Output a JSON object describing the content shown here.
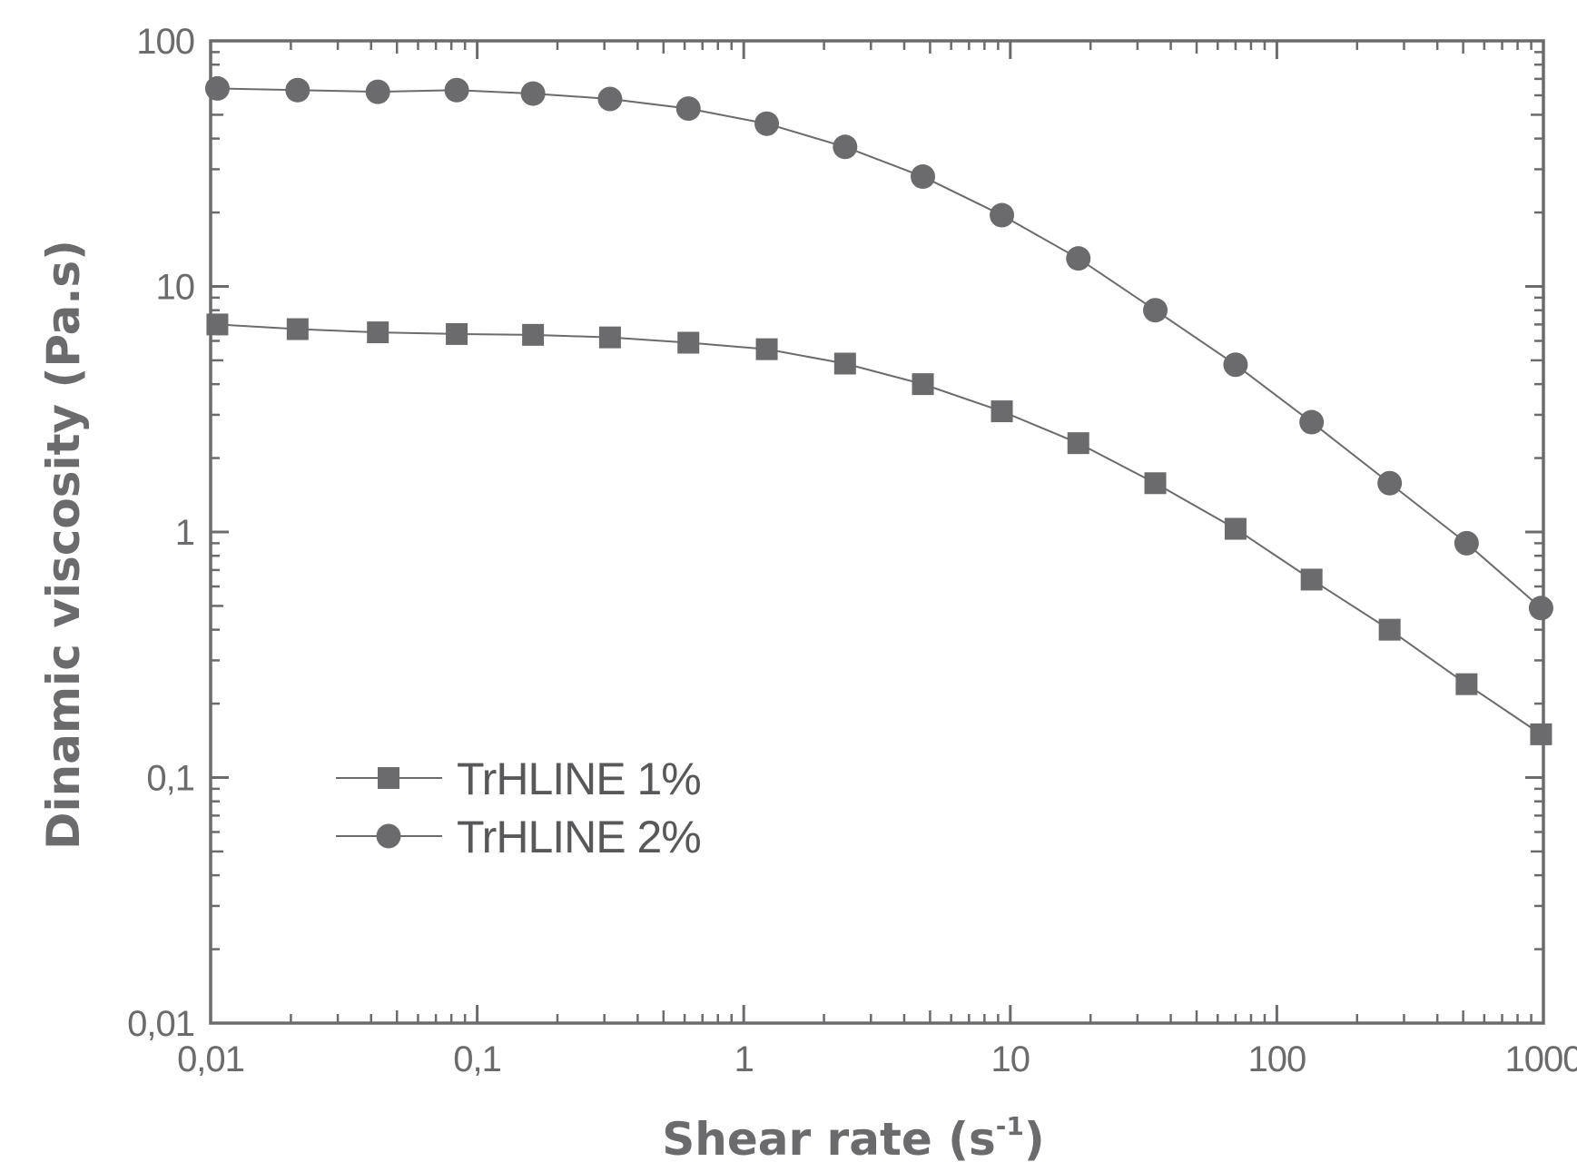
{
  "chart_data": {
    "type": "line",
    "xscale": "log",
    "yscale": "log",
    "xlim": [
      0.01,
      1000
    ],
    "ylim": [
      0.01,
      100
    ],
    "xlabel": "Shear rate (s",
    "xlabel_sup": "-1",
    "xlabel_close": ")",
    "ylabel": "Dinamic viscosity (Pa.s)",
    "xticks": [
      {
        "value": 0.01,
        "label": "0,01"
      },
      {
        "value": 0.1,
        "label": "0,1"
      },
      {
        "value": 1,
        "label": "1"
      },
      {
        "value": 10,
        "label": "10"
      },
      {
        "value": 100,
        "label": "100"
      },
      {
        "value": 1000,
        "label": "1000"
      }
    ],
    "yticks": [
      {
        "value": 0.01,
        "label": "0,01"
      },
      {
        "value": 0.1,
        "label": "0,1"
      },
      {
        "value": 1,
        "label": "1"
      },
      {
        "value": 10,
        "label": "10"
      },
      {
        "value": 100,
        "label": "100"
      }
    ],
    "grid": false,
    "legend_position": "lower-left",
    "series": [
      {
        "name": "TrHLINE 1%",
        "marker": "square",
        "color": "#6b6b6d",
        "x": [
          0.0106,
          0.0212,
          0.0424,
          0.0838,
          0.162,
          0.315,
          0.62,
          1.22,
          2.4,
          4.7,
          9.3,
          18,
          35,
          70,
          135,
          265,
          515,
          980
        ],
        "y": [
          7.0,
          6.7,
          6.5,
          6.4,
          6.35,
          6.2,
          5.9,
          5.55,
          4.85,
          4.0,
          3.1,
          2.3,
          1.58,
          1.03,
          0.64,
          0.4,
          0.24,
          0.15
        ]
      },
      {
        "name": "TrHLINE 2%",
        "marker": "circle",
        "color": "#6b6b6d",
        "x": [
          0.0106,
          0.0212,
          0.0424,
          0.0838,
          0.162,
          0.315,
          0.62,
          1.22,
          2.4,
          4.7,
          9.3,
          18,
          35,
          70,
          135,
          265,
          515,
          980
        ],
        "y": [
          64,
          63,
          62,
          63,
          61,
          58,
          53,
          46,
          37,
          28,
          19.5,
          13,
          8.0,
          4.8,
          2.8,
          1.58,
          0.9,
          0.49
        ]
      }
    ]
  },
  "colors": {
    "axis": "#6b6b6d",
    "marker": "#6b6b6d",
    "line": "#6b6b6d",
    "text": "#6b6b6d"
  }
}
